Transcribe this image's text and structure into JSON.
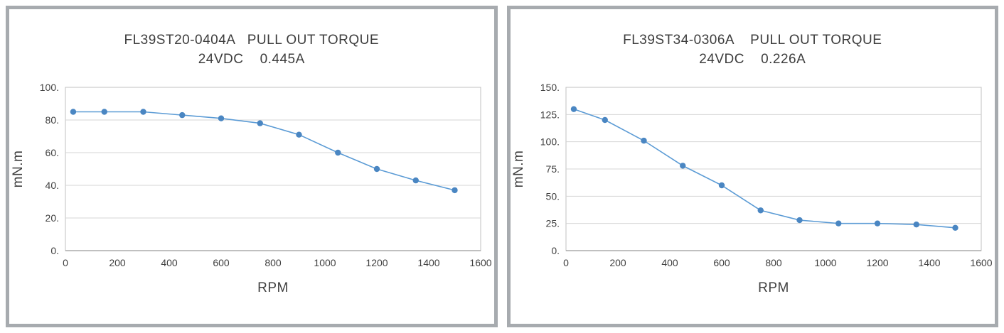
{
  "styles": {
    "line_color": "#5b9bd5",
    "marker_color": "#4a86c2",
    "grid_color": "#d4d4d4",
    "plot_border_color": "#c0c0c0",
    "axis_line_color": "#9a9a9a",
    "text_color": "#404040",
    "panel_border_color": "#a7abaf"
  },
  "chart_data": [
    {
      "type": "line",
      "title": "FL39ST20-0404A   PULL OUT TORQUE",
      "subtitle": "24VDC    0.445A",
      "xlabel": "RPM",
      "ylabel": "mN.m",
      "x": [
        30,
        150,
        300,
        450,
        600,
        750,
        900,
        1050,
        1200,
        1350,
        1500
      ],
      "y": [
        85,
        85,
        85,
        83,
        81,
        78,
        71,
        60,
        50,
        43,
        37
      ],
      "xlim": [
        0,
        1600
      ],
      "x_tick_step": 200,
      "x_tick_labels": [
        "0",
        "200",
        "400",
        "600",
        "800",
        "1000",
        "1200",
        "1400",
        "1600"
      ],
      "ylim": [
        0,
        100
      ],
      "y_tick_step": 20,
      "y_tick_labels": [
        "0.",
        "20.",
        "40.",
        "60.",
        "80.",
        "100."
      ],
      "grid": "horizontal-only",
      "legend": "none"
    },
    {
      "type": "line",
      "title": "FL39ST34-0306A    PULL OUT TORQUE",
      "subtitle": "24VDC    0.226A",
      "xlabel": "RPM",
      "ylabel": "mN.m",
      "x": [
        30,
        150,
        300,
        450,
        600,
        750,
        900,
        1050,
        1200,
        1350,
        1500
      ],
      "y": [
        130,
        120,
        101,
        78,
        60,
        37,
        28,
        25,
        25,
        24,
        21
      ],
      "xlim": [
        0,
        1600
      ],
      "x_tick_step": 200,
      "x_tick_labels": [
        "0",
        "200",
        "400",
        "600",
        "800",
        "1000",
        "1200",
        "1400",
        "1600"
      ],
      "ylim": [
        0,
        150
      ],
      "y_tick_step": 25,
      "y_tick_labels": [
        "0.",
        "25.",
        "50.",
        "75.",
        "100.",
        "125.",
        "150."
      ],
      "grid": "horizontal-only",
      "legend": "none"
    }
  ]
}
